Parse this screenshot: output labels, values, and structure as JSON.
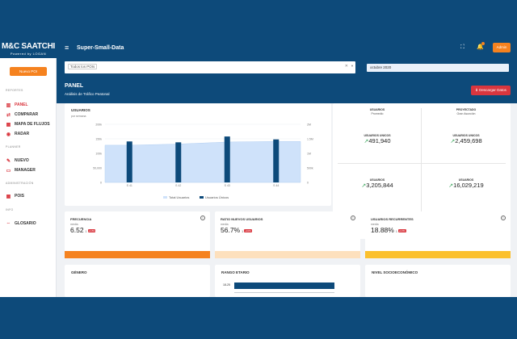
{
  "brand": {
    "logo_main": "M&C SAATCHI",
    "logo_sub": "Powered by LOGAN"
  },
  "header": {
    "title": "Super-Small-Data",
    "user_button": "Admin"
  },
  "sidebar": {
    "new_poi_label": "Nuevo POI",
    "sections": [
      {
        "label": "REPORTES"
      },
      {
        "label": "PLANNER"
      },
      {
        "label": "ADMINISTRACIÓN"
      },
      {
        "label": "INFO"
      }
    ],
    "items": [
      {
        "label": "PANEL",
        "icon": "chart-bar-icon",
        "active": true
      },
      {
        "label": "COMPARAR",
        "icon": "compare-icon"
      },
      {
        "label": "MAPA DE FLUJOS",
        "icon": "map-icon"
      },
      {
        "label": "RADAR",
        "icon": "radar-icon"
      },
      {
        "label": "NUEVO",
        "icon": "pencil-icon"
      },
      {
        "label": "MANAGER",
        "icon": "manager-icon"
      },
      {
        "label": "POIS",
        "icon": "grid-icon"
      },
      {
        "label": "GLOSARIO",
        "icon": "glossary-icon"
      }
    ]
  },
  "filters": {
    "poi_tag": "Todos los POIs",
    "date": "octubre 2020"
  },
  "page": {
    "title": "PANEL",
    "subtitle": "Análisis de Tráfico Peatonal",
    "download_label": "Descargar Datos"
  },
  "chart_card": {
    "title": "USUARIOS",
    "subtitle": "por semana",
    "legend_total": "Total Usuarios",
    "legend_unique": "Usuarios Únicos"
  },
  "chart_data": {
    "type": "bar",
    "categories": [
      "S 41",
      "S 42",
      "S 43",
      "S 44"
    ],
    "series": [
      {
        "name": "Total Usuarios",
        "type": "area",
        "values": [
          1280,
          1320,
          1390,
          1410
        ]
      },
      {
        "name": "Usuarios Únicos",
        "type": "bar",
        "values": [
          141,
          138,
          158,
          148
        ]
      }
    ],
    "left_axis": {
      "ticks": [
        "0",
        "50,000",
        "100k",
        "150k",
        "200k"
      ]
    },
    "right_axis": {
      "ticks": [
        "0",
        "500k",
        "1M",
        "1.5M",
        "2M"
      ]
    },
    "left_max": 200,
    "right_max": 2000,
    "colors": {
      "area": "#cfe2fa",
      "bar": "#0d4a7a"
    }
  },
  "stats": [
    {
      "label": "USUARIOS",
      "sub": "Promedio",
      "value": ""
    },
    {
      "label": "PROYECTADO",
      "sub": "Gran Asunción",
      "value": ""
    },
    {
      "label": "USUARIOS UNICOS",
      "sub": "",
      "value": "491,940"
    },
    {
      "label": "USUARIOS UNICOS",
      "sub": "",
      "value": "2,459,698"
    },
    {
      "label": "USUARIOS",
      "sub": "",
      "value": "3,205,844"
    },
    {
      "label": "USUARIOS",
      "sub": "",
      "value": "16,029,219"
    }
  ],
  "metrics": [
    {
      "title": "FRECUENCIA",
      "sub": "media",
      "value": "6.52",
      "delta": "1",
      "badge": "+Inf%",
      "color": "#f5821f"
    },
    {
      "title": "RATIO NUEVOS USUARIOS",
      "sub": "media",
      "value": "56.7%",
      "delta": "1",
      "badge": "+Inf%",
      "color": "#fde0bd"
    },
    {
      "title": "USUARIOS RECURRENTES",
      "sub": "media",
      "value": "18.88%",
      "delta": "1",
      "badge": "+Inf%",
      "color": "#fbc02d"
    }
  ],
  "bottom": {
    "genero": "GÉNERO",
    "rango": "RANGO ETARIO",
    "rango_row": "18-25",
    "nivel": "NIVEL SOCIOECONÓMICO"
  },
  "colors": {
    "primary": "#0d4a7a",
    "accent": "#f5821f",
    "danger": "#d9363e",
    "positive": "#3ba55d"
  }
}
